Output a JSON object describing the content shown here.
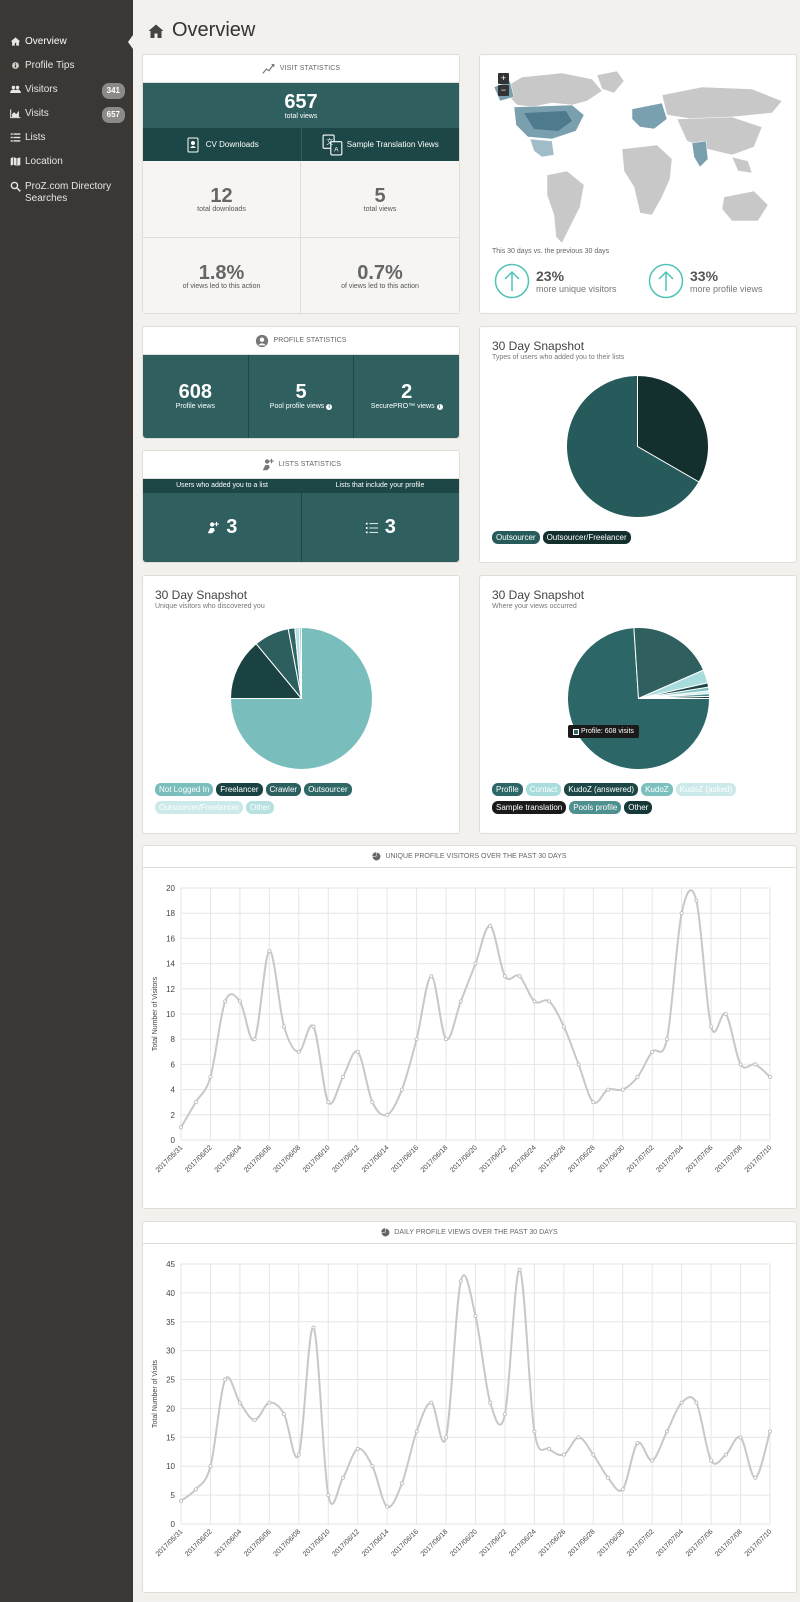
{
  "sidebar": {
    "items": [
      {
        "label": "Overview",
        "icon": "home-icon"
      },
      {
        "label": "Profile Tips",
        "icon": "info-icon"
      },
      {
        "label": "Visitors",
        "badge": "341",
        "icon": "users-icon"
      },
      {
        "label": "Visits",
        "badge": "657",
        "icon": "area-chart-icon"
      },
      {
        "label": "Lists",
        "icon": "list-icon"
      },
      {
        "label": "Location",
        "icon": "map-icon"
      },
      {
        "label": "ProZ.com Directory Searches",
        "icon": "search-icon"
      }
    ]
  },
  "page_title": "Overview",
  "visit_stats": {
    "heading": "VISIT STATISTICS",
    "total": "657",
    "total_label": "total views",
    "cv_label": "CV Downloads",
    "sample_label": "Sample Translation Views",
    "downloads": "12",
    "downloads_label": "total downloads",
    "sample_views": "5",
    "sample_views_label": "total views",
    "cv_pct": "1.8%",
    "cv_pct_label": "of views led to this action",
    "sample_pct": "0.7%",
    "sample_pct_label": "of views led to this action"
  },
  "map_card": {
    "compare_label": "This 30 days vs. the previous 30 days",
    "visitors_pct": "23%",
    "visitors_label": "more unique visitors",
    "views_pct": "33%",
    "views_label": "more profile views",
    "zoom_in": "+",
    "zoom_out": "−"
  },
  "profile_stats": {
    "heading": "PROFILE STATISTICS",
    "profile_views": "608",
    "profile_views_label": "Profile views",
    "pool_views": "5",
    "pool_views_label": "Pool profile views",
    "securepro_views": "2",
    "securepro_views_label": "SecurePRO™ views"
  },
  "lists_stats": {
    "heading": "LISTS STATISTICS",
    "col1_label": "Users who added you to a list",
    "col1_value": "3",
    "col2_label": "Lists that include your profile",
    "col2_value": "3"
  },
  "snapshot_lists": {
    "title": "30 Day Snapshot",
    "subtitle": "Types of users who added you to their lists",
    "legend": [
      "Outsourcer",
      "Outsourcer/Freelancer"
    ]
  },
  "snapshot_visitors": {
    "title": "30 Day Snapshot",
    "subtitle": "Unique visitors who discovered you",
    "legend": [
      "Not Logged In",
      "Freelancer",
      "Crawler",
      "Outsourcer",
      "Outsourcer/Freelancer",
      "Other"
    ]
  },
  "snapshot_views": {
    "title": "30 Day Snapshot",
    "subtitle": "Where your views occurred",
    "tooltip": "Profile: 608 visits",
    "legend": [
      "Profile",
      "Contact",
      "KudoZ (answered)",
      "KudoZ",
      "KudoZ (asked)",
      "Sample translation",
      "Pools profile",
      "Other"
    ]
  },
  "colors": {
    "teal": "#2f5f5f",
    "teal_dark": "#1d4646",
    "light_teal": "#7bbfbf",
    "accent": "#4fc3b5"
  },
  "pie_data": {
    "lists": [
      {
        "name": "Outsourcer",
        "value": 1,
        "color": "#13302f"
      },
      {
        "name": "Outsourcer/Freelancer",
        "value": 2,
        "color": "#275b5b"
      }
    ],
    "visitors": [
      {
        "name": "Not Logged In",
        "value": 75,
        "color": "#79bdbd"
      },
      {
        "name": "Freelancer",
        "value": 14,
        "color": "#1a4242"
      },
      {
        "name": "Crawler",
        "value": 8,
        "color": "#2d5f5f"
      },
      {
        "name": "Outsourcer",
        "value": 1.5,
        "color": "#2f6666"
      },
      {
        "name": "Outsourcer/Freelancer",
        "value": 1,
        "color": "#b7e0e0"
      },
      {
        "name": "Other",
        "value": 0.5,
        "color": "#9fd4d4"
      }
    ],
    "views": [
      {
        "name": "Profile",
        "value": 608,
        "color": "#2c6666"
      },
      {
        "name": "Sample translation",
        "value": 160,
        "color": "#2f5f5f"
      },
      {
        "name": "Contact",
        "value": 25,
        "color": "#a9dcdc"
      },
      {
        "name": "KudoZ (answered)",
        "value": 8,
        "color": "#1d4646"
      },
      {
        "name": "KudoZ",
        "value": 7,
        "color": "#7bbfbf"
      },
      {
        "name": "KudoZ (asked)",
        "value": 5,
        "color": "#cdeaea"
      },
      {
        "name": "Pools profile",
        "value": 5,
        "color": "#4e8f8f"
      },
      {
        "name": "Other",
        "value": 4,
        "color": "#163838"
      }
    ]
  },
  "chart_data": [
    {
      "type": "line",
      "title": "UNIQUE PROFILE VISITORS OVER THE PAST 30 DAYS",
      "ylabel": "Total Number of Visitors",
      "ylim": [
        0,
        20
      ],
      "yticks": [
        0,
        2,
        4,
        6,
        8,
        10,
        12,
        14,
        16,
        18,
        20
      ],
      "x": [
        "2017/05/31",
        "2017/06/01",
        "2017/06/02",
        "2017/06/03",
        "2017/06/04",
        "2017/06/05",
        "2017/06/06",
        "2017/06/07",
        "2017/06/08",
        "2017/06/09",
        "2017/06/10",
        "2017/06/11",
        "2017/06/12",
        "2017/06/13",
        "2017/06/14",
        "2017/06/15",
        "2017/06/16",
        "2017/06/17",
        "2017/06/18",
        "2017/06/19",
        "2017/06/20",
        "2017/06/21",
        "2017/06/22",
        "2017/06/23",
        "2017/06/24",
        "2017/06/25",
        "2017/06/26",
        "2017/06/27",
        "2017/06/28",
        "2017/06/29",
        "2017/06/30",
        "2017/07/01",
        "2017/07/02",
        "2017/07/03",
        "2017/07/04",
        "2017/07/05",
        "2017/07/06",
        "2017/07/07",
        "2017/07/08",
        "2017/07/09",
        "2017/07/10"
      ],
      "xticks": [
        "2017/05/31",
        "2017/06/02",
        "2017/06/04",
        "2017/06/06",
        "2017/06/08",
        "2017/06/10",
        "2017/06/12",
        "2017/06/14",
        "2017/06/16",
        "2017/06/18",
        "2017/06/20",
        "2017/06/22",
        "2017/06/24",
        "2017/06/26",
        "2017/06/28",
        "2017/06/30",
        "2017/07/02",
        "2017/07/04",
        "2017/07/06",
        "2017/07/08",
        "2017/07/10"
      ],
      "values": [
        1,
        3,
        5,
        11,
        11,
        8,
        15,
        9,
        7,
        9,
        3,
        5,
        7,
        3,
        2,
        4,
        8,
        13,
        8,
        11,
        14,
        17,
        13,
        13,
        11,
        11,
        9,
        6,
        3,
        4,
        4,
        5,
        7,
        8,
        18,
        19,
        9,
        10,
        6,
        6,
        5
      ]
    },
    {
      "type": "line",
      "title": "DAILY PROFILE VIEWS OVER THE PAST 30 DAYS",
      "ylabel": "Total Number of Visits",
      "ylim": [
        0,
        45
      ],
      "yticks": [
        0,
        5,
        10,
        15,
        20,
        25,
        30,
        35,
        40,
        45
      ],
      "x": [
        "2017/05/31",
        "2017/06/01",
        "2017/06/02",
        "2017/06/03",
        "2017/06/04",
        "2017/06/05",
        "2017/06/06",
        "2017/06/07",
        "2017/06/08",
        "2017/06/09",
        "2017/06/10",
        "2017/06/11",
        "2017/06/12",
        "2017/06/13",
        "2017/06/14",
        "2017/06/15",
        "2017/06/16",
        "2017/06/17",
        "2017/06/18",
        "2017/06/19",
        "2017/06/20",
        "2017/06/21",
        "2017/06/22",
        "2017/06/23",
        "2017/06/24",
        "2017/06/25",
        "2017/06/26",
        "2017/06/27",
        "2017/06/28",
        "2017/06/29",
        "2017/06/30",
        "2017/07/01",
        "2017/07/02",
        "2017/07/03",
        "2017/07/04",
        "2017/07/05",
        "2017/07/06",
        "2017/07/07",
        "2017/07/08",
        "2017/07/09",
        "2017/07/10"
      ],
      "xticks": [
        "2017/05/31",
        "2017/06/02",
        "2017/06/04",
        "2017/06/06",
        "2017/06/08",
        "2017/06/10",
        "2017/06/12",
        "2017/06/14",
        "2017/06/16",
        "2017/06/18",
        "2017/06/20",
        "2017/06/22",
        "2017/06/24",
        "2017/06/26",
        "2017/06/28",
        "2017/06/30",
        "2017/07/02",
        "2017/07/04",
        "2017/07/06",
        "2017/07/08",
        "2017/07/10"
      ],
      "values": [
        4,
        6,
        10,
        25,
        21,
        18,
        21,
        19,
        12,
        34,
        5,
        8,
        13,
        10,
        3,
        7,
        16,
        21,
        15,
        42,
        36,
        21,
        19,
        44,
        16,
        13,
        12,
        15,
        12,
        8,
        6,
        14,
        11,
        16,
        21,
        21,
        11,
        12,
        15,
        8,
        16
      ]
    }
  ]
}
